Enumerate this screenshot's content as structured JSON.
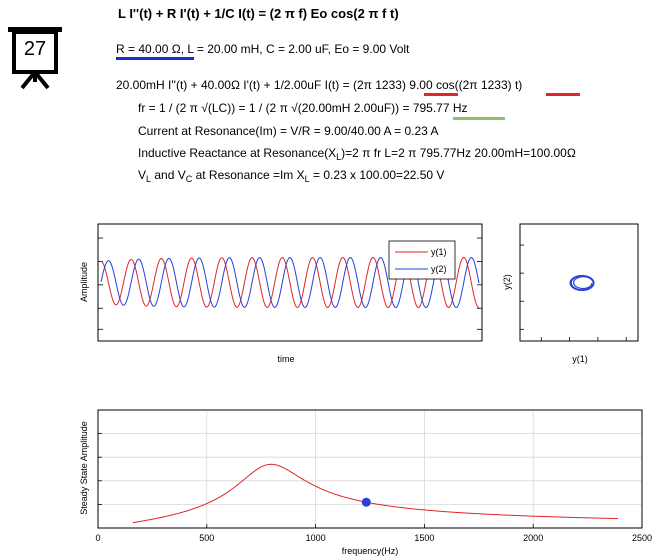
{
  "slide_number": "27",
  "equation_title": "L I''(t) + R I'(t) + 1/C I(t) = (2 π f) Eo cos(2 π f t)",
  "params": {
    "r_part": "R = 40.00 Ω",
    "rest": ", L = 20.00 mH, C = 2.00 uF, Eo = 9.00 Volt"
  },
  "eq2": {
    "p1": "20.00mH I''(t) + 40.00Ω I'(t) + 1/2.00uF I(t) = (2π ",
    "f1": "1233",
    "p2": ") 9.00 cos((2π ",
    "f2": "1233",
    "p3": ") t)"
  },
  "fr_line": {
    "p1": "fr = 1 / (2 π √(LC)) = 1 / (2 π √(20.00mH 2.00uF)) = ",
    "value": "795.77",
    "unit": " Hz"
  },
  "current_line": "Current at Resonance(Im) = V/R = 9.00/40.00 A = 0.23 A",
  "reactance_line": {
    "p1": "Inductive Reactance at Resonance(X",
    "sub": "L",
    "p2": ")=2 π fr L=2 π 795.77Hz 20.00mH=100.00Ω"
  },
  "voltage_line": {
    "p1": "V",
    "sub1": "L",
    "p2": " and V",
    "sub2": "C",
    "p3": " at Resonance =Im X",
    "sub3": "L",
    "p4": " = 0.23 x 100.00=22.50 V"
  },
  "colors": {
    "red": "#e0262b",
    "blue": "#2a3fd6",
    "underline_blue": "#1a2fc9",
    "underline_red": "#e0262b",
    "underline_green": "#8cc26a"
  },
  "chart_data": [
    {
      "type": "line",
      "xlabel": "time",
      "ylabel": "Amplitude",
      "legend": [
        "y(1)",
        "y(2)"
      ],
      "legend_position": "top-right",
      "series": [
        {
          "name": "y(1)",
          "color": "#e0262b",
          "cycles": 12.5,
          "amplitude": 0.45,
          "phase": 0.0
        },
        {
          "name": "y(2)",
          "color": "#2a3fd6",
          "cycles": 12.5,
          "amplitude": 0.45,
          "phase": -1.571
        }
      ]
    },
    {
      "type": "line",
      "xlabel": "y(1)",
      "ylabel": "y(2)",
      "series": [
        {
          "name": "phase",
          "color": "#2a3fd6"
        }
      ]
    },
    {
      "type": "line",
      "xlabel": "frequency(Hz)",
      "ylabel": "Steady State Amplitude",
      "x_ticks": [
        0,
        500,
        1000,
        1500,
        2000,
        2500
      ],
      "xlim": [
        0,
        2500
      ],
      "ylim": [
        0,
        1.0
      ],
      "grid": true,
      "series": [
        {
          "name": "response",
          "color": "#e0262b",
          "x_start": 160,
          "x_end": 2390,
          "peak_x": 795.77,
          "peak_y": 0.54
        }
      ],
      "marker": {
        "x": 1233,
        "y": 0.2,
        "color": "#2a3fd6"
      }
    }
  ]
}
